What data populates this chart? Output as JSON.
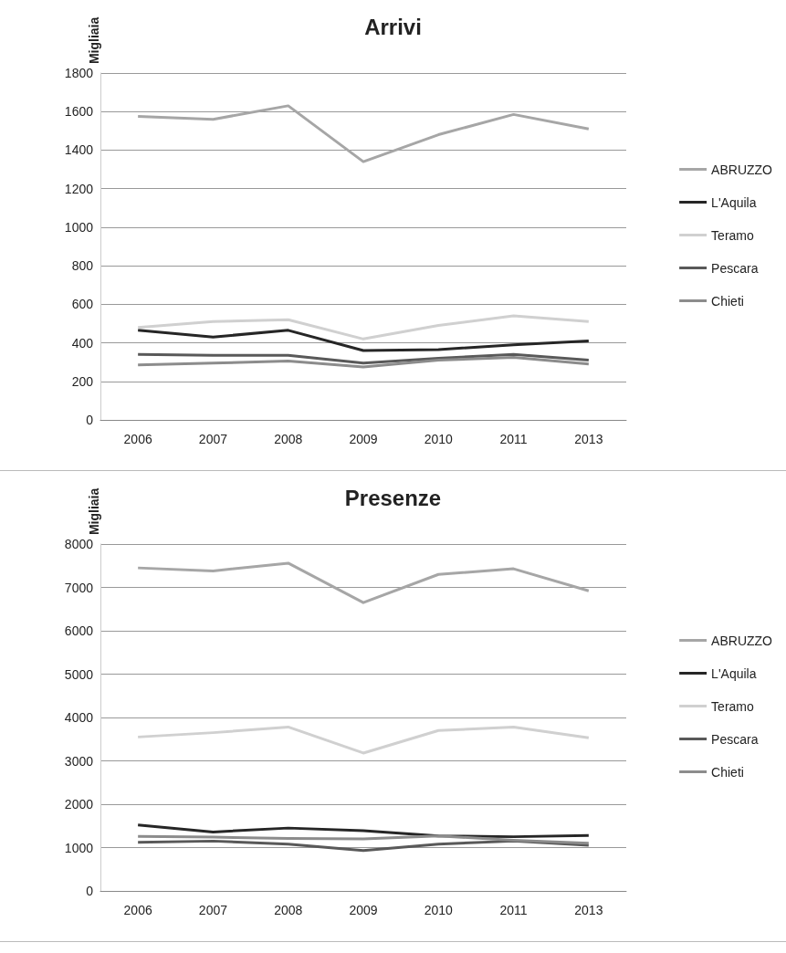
{
  "chart_data": [
    {
      "type": "line",
      "title": "Arrivi",
      "ylabel": "Migliaia",
      "categories": [
        "2006",
        "2007",
        "2008",
        "2009",
        "2010",
        "2011",
        "2013"
      ],
      "series": [
        {
          "name": "ABRUZZO",
          "color": "#a6a6a6",
          "values": [
            1575,
            1560,
            1630,
            1340,
            1480,
            1585,
            1510
          ]
        },
        {
          "name": "L'Aquila",
          "color": "#262626",
          "values": [
            465,
            430,
            465,
            360,
            365,
            390,
            410
          ]
        },
        {
          "name": "Teramo",
          "color": "#d0d0d0",
          "values": [
            480,
            510,
            520,
            420,
            490,
            540,
            510
          ]
        },
        {
          "name": "Pescara",
          "color": "#595959",
          "values": [
            340,
            335,
            335,
            295,
            320,
            340,
            310
          ]
        },
        {
          "name": "Chieti",
          "color": "#8c8c8c",
          "values": [
            285,
            295,
            305,
            275,
            310,
            325,
            290
          ]
        }
      ],
      "ylim": [
        0,
        1800
      ],
      "yticks": [
        0,
        200,
        400,
        600,
        800,
        1000,
        1200,
        1400,
        1600,
        1800
      ],
      "grid": "y",
      "legend": "right",
      "marker": "none",
      "line_style": "solid"
    },
    {
      "type": "line",
      "title": "Presenze",
      "ylabel": "Migliaia",
      "categories": [
        "2006",
        "2007",
        "2008",
        "2009",
        "2010",
        "2011",
        "2013"
      ],
      "series": [
        {
          "name": "ABRUZZO",
          "color": "#a6a6a6",
          "values": [
            7450,
            7380,
            7560,
            6650,
            7300,
            7430,
            6920
          ]
        },
        {
          "name": "L'Aquila",
          "color": "#262626",
          "values": [
            1520,
            1360,
            1450,
            1390,
            1270,
            1250,
            1280
          ]
        },
        {
          "name": "Teramo",
          "color": "#d0d0d0",
          "values": [
            3550,
            3650,
            3780,
            3180,
            3700,
            3780,
            3530
          ]
        },
        {
          "name": "Pescara",
          "color": "#595959",
          "values": [
            1120,
            1150,
            1080,
            930,
            1080,
            1150,
            1050
          ]
        },
        {
          "name": "Chieti",
          "color": "#8c8c8c",
          "values": [
            1260,
            1240,
            1210,
            1200,
            1270,
            1170,
            1100
          ]
        }
      ],
      "ylim": [
        0,
        8000
      ],
      "yticks": [
        0,
        1000,
        2000,
        3000,
        4000,
        5000,
        6000,
        7000,
        8000
      ],
      "grid": "y",
      "legend": "right",
      "marker": "none",
      "line_style": "solid"
    }
  ]
}
